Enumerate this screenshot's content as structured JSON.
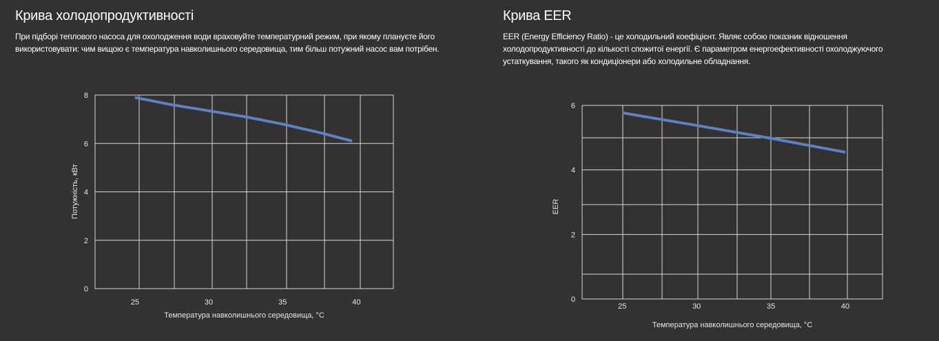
{
  "colors": {
    "background": "#333132",
    "grid": "#d9d9d9",
    "line": "#5b82c2"
  },
  "sections": [
    {
      "title": "Крива холодопродуктивності",
      "description": "При підборі теплового насоса для охолодження води враховуйте температурний режим, при якому плануєте його використовувати: чим вищою є температура навколишнього середовища, тим більш потужний насос вам потрібен."
    },
    {
      "title": "Крива EER",
      "description": "EER (Energy Efficiency Ratio) - це холодильний коефіцієнт. Являє собою показник відношення холодопродуктивності до кількості спожитої енергії. Є параметром енергоефективності охолоджуючого устаткування, такого як кондиціонери або холодильне обладнання."
    }
  ],
  "chart_data": [
    {
      "type": "line",
      "title": "Крива холодопродуктивності",
      "xlabel": "Температура навколишнього середовища, °C",
      "ylabel": "Потужність, кВт",
      "xlim": [
        22.3,
        42.5
      ],
      "ylim": [
        0,
        8
      ],
      "xticks": [
        "25",
        "30",
        "35",
        "40"
      ],
      "yticks": [
        "0",
        "2",
        "4",
        "6",
        "8"
      ],
      "grid": true,
      "series": [
        {
          "name": "Потужність",
          "x": [
            25,
            27.5,
            30,
            32.5,
            35,
            37.5,
            39.7
          ],
          "y": [
            7.9,
            7.6,
            7.35,
            7.1,
            6.8,
            6.45,
            6.1
          ]
        }
      ]
    },
    {
      "type": "line",
      "title": "Крива EER",
      "xlabel": "Температура навколишнього середовища, °C",
      "ylabel": "EER",
      "xlim": [
        22.3,
        42.5
      ],
      "ylim": [
        0,
        6
      ],
      "xticks": [
        "25",
        "30",
        "35",
        "40"
      ],
      "yticks": [
        "0",
        "2",
        "4",
        "6"
      ],
      "grid": true,
      "series": [
        {
          "name": "EER",
          "x": [
            25,
            30,
            35,
            40
          ],
          "y": [
            5.77,
            5.38,
            4.98,
            4.55
          ]
        }
      ]
    }
  ]
}
